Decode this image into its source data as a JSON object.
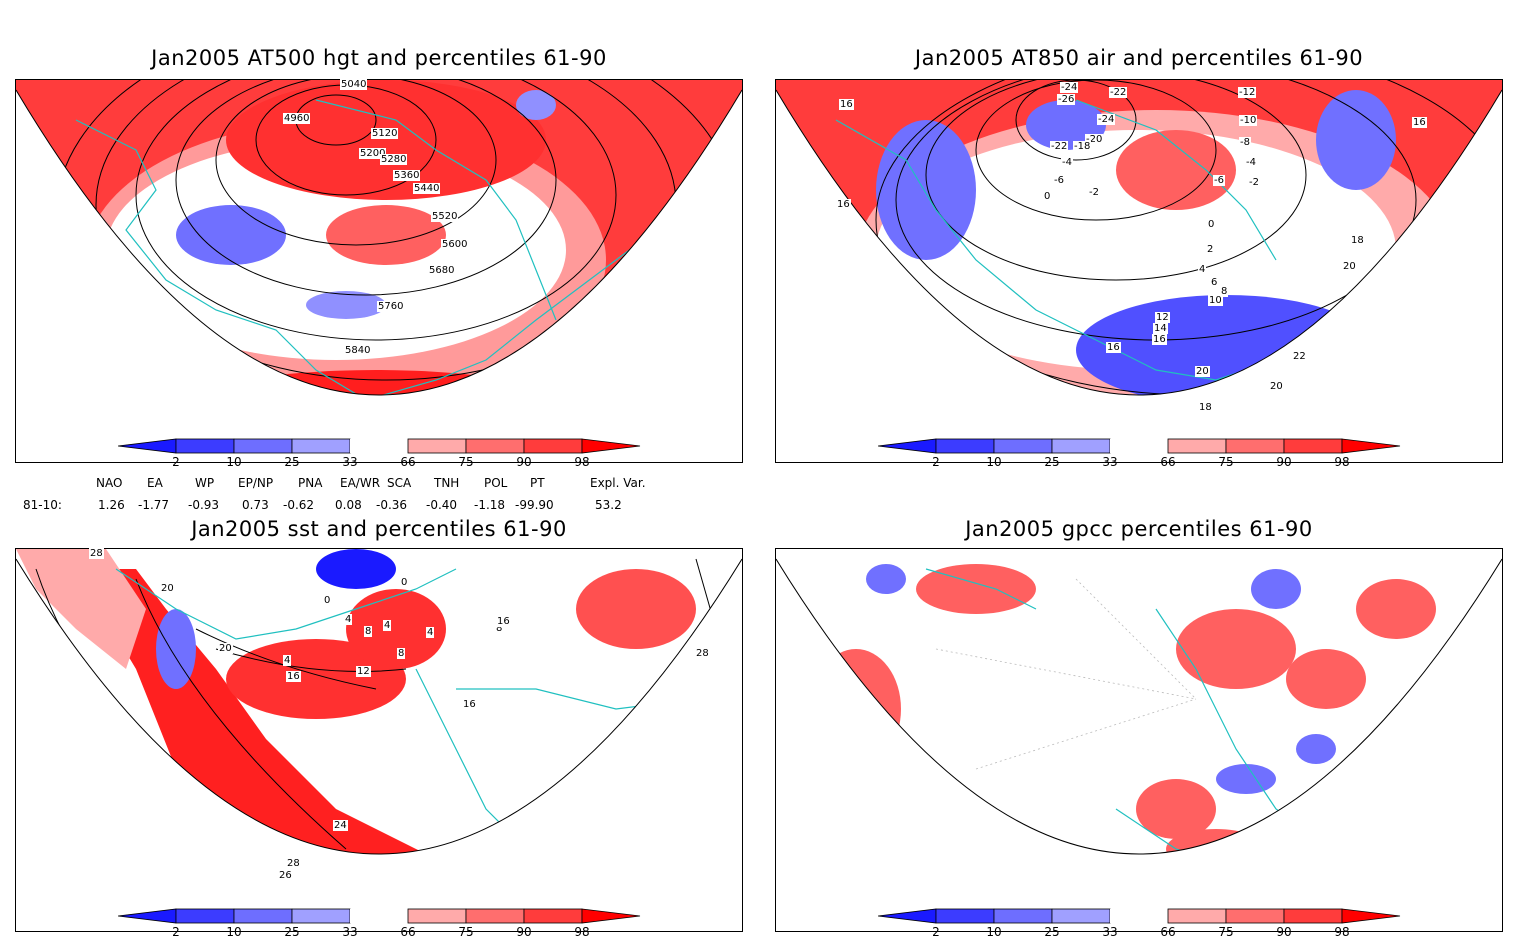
{
  "panels": [
    {
      "id": "hgt500",
      "title": "Jan2005 AT500 hgt and percentiles 61-90",
      "contour_labels": [
        "4960",
        "5120",
        "5200",
        "5280",
        "5360",
        "5440",
        "5520",
        "5600",
        "5680",
        "5760",
        "5840",
        "5040"
      ]
    },
    {
      "id": "air850",
      "title": "Jan2005 AT850 air and percentiles 61-90",
      "contour_labels": [
        "-24",
        "-26",
        "-22",
        "-22",
        "-24",
        "-20",
        "-18",
        "-4",
        "-6",
        "-2",
        "0",
        "-12",
        "-10",
        "-8",
        "-4",
        "-6",
        "-2",
        "0",
        "16",
        "16",
        "16",
        "18",
        "2",
        "4",
        "6",
        "8",
        "10",
        "12",
        "14",
        "16",
        "20",
        "22",
        "20",
        "18",
        "20",
        "16"
      ]
    },
    {
      "id": "sst",
      "title": "Jan2005 sst and percentiles 61-90",
      "contour_labels": [
        "28",
        "20",
        "0",
        "0",
        "4",
        "8",
        "4",
        "4",
        "20",
        "4",
        "16",
        "12",
        "16",
        "8",
        "8",
        "16",
        "24",
        "28",
        "26",
        "28"
      ]
    },
    {
      "id": "gpcc",
      "title": "Jan2005 gpcc percentiles 61-90",
      "contour_labels": []
    }
  ],
  "colorbar": {
    "ticks": [
      "2",
      "10",
      "25",
      "33",
      "66",
      "75",
      "90",
      "98"
    ],
    "colors": [
      "#1a1aff",
      "#3c3cff",
      "#6e6eff",
      "#a0a0ff",
      "#ffffff",
      "#ffaaaa",
      "#ff6e6e",
      "#ff3c3c",
      "#ff0000"
    ]
  },
  "teleconnections": {
    "headers": [
      "NAO",
      "EA",
      "WP",
      "EP/NP",
      "PNA",
      "EA/WR",
      "SCA",
      "TNH",
      "POL",
      "PT",
      "Expl. Var."
    ],
    "row_label": "81-10:",
    "values": [
      "1.26",
      "-1.77",
      "-0.93",
      "0.73",
      "-0.62",
      "0.08",
      "-0.36",
      "-0.40",
      "-1.18",
      "-99.90",
      "53.2"
    ]
  },
  "colors": {
    "coast": "#20c0c0",
    "warm": "#ff3030",
    "warm_mid": "#ff7070",
    "warm_light": "#ffb0b0",
    "cold": "#3c3cff",
    "cold_light": "#a0a0ff"
  }
}
